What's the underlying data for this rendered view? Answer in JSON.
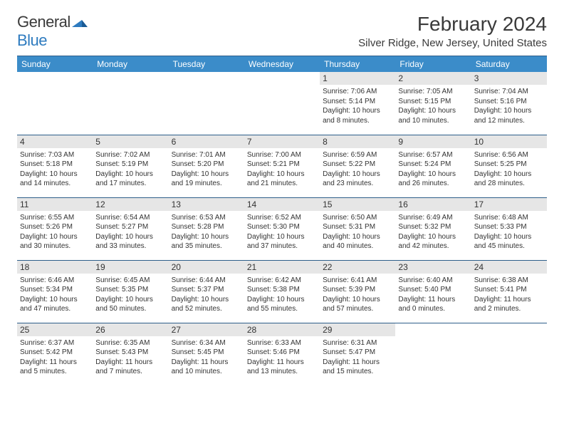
{
  "brand": {
    "word1": "General",
    "word2": "Blue"
  },
  "header": {
    "title": "February 2024",
    "location": "Silver Ridge, New Jersey, United States"
  },
  "colors": {
    "header_bg": "#3b8cc9",
    "header_text": "#ffffff",
    "daynum_bg": "#e6e6e6",
    "rule": "#2e5f8a",
    "brand_blue": "#2e7bbf",
    "text": "#333333"
  },
  "weekdays": [
    "Sunday",
    "Monday",
    "Tuesday",
    "Wednesday",
    "Thursday",
    "Friday",
    "Saturday"
  ],
  "weeks": [
    [
      null,
      null,
      null,
      null,
      {
        "n": "1",
        "sunrise": "7:06 AM",
        "sunset": "5:14 PM",
        "dl": "10 hours and 8 minutes."
      },
      {
        "n": "2",
        "sunrise": "7:05 AM",
        "sunset": "5:15 PM",
        "dl": "10 hours and 10 minutes."
      },
      {
        "n": "3",
        "sunrise": "7:04 AM",
        "sunset": "5:16 PM",
        "dl": "10 hours and 12 minutes."
      }
    ],
    [
      {
        "n": "4",
        "sunrise": "7:03 AM",
        "sunset": "5:18 PM",
        "dl": "10 hours and 14 minutes."
      },
      {
        "n": "5",
        "sunrise": "7:02 AM",
        "sunset": "5:19 PM",
        "dl": "10 hours and 17 minutes."
      },
      {
        "n": "6",
        "sunrise": "7:01 AM",
        "sunset": "5:20 PM",
        "dl": "10 hours and 19 minutes."
      },
      {
        "n": "7",
        "sunrise": "7:00 AM",
        "sunset": "5:21 PM",
        "dl": "10 hours and 21 minutes."
      },
      {
        "n": "8",
        "sunrise": "6:59 AM",
        "sunset": "5:22 PM",
        "dl": "10 hours and 23 minutes."
      },
      {
        "n": "9",
        "sunrise": "6:57 AM",
        "sunset": "5:24 PM",
        "dl": "10 hours and 26 minutes."
      },
      {
        "n": "10",
        "sunrise": "6:56 AM",
        "sunset": "5:25 PM",
        "dl": "10 hours and 28 minutes."
      }
    ],
    [
      {
        "n": "11",
        "sunrise": "6:55 AM",
        "sunset": "5:26 PM",
        "dl": "10 hours and 30 minutes."
      },
      {
        "n": "12",
        "sunrise": "6:54 AM",
        "sunset": "5:27 PM",
        "dl": "10 hours and 33 minutes."
      },
      {
        "n": "13",
        "sunrise": "6:53 AM",
        "sunset": "5:28 PM",
        "dl": "10 hours and 35 minutes."
      },
      {
        "n": "14",
        "sunrise": "6:52 AM",
        "sunset": "5:30 PM",
        "dl": "10 hours and 37 minutes."
      },
      {
        "n": "15",
        "sunrise": "6:50 AM",
        "sunset": "5:31 PM",
        "dl": "10 hours and 40 minutes."
      },
      {
        "n": "16",
        "sunrise": "6:49 AM",
        "sunset": "5:32 PM",
        "dl": "10 hours and 42 minutes."
      },
      {
        "n": "17",
        "sunrise": "6:48 AM",
        "sunset": "5:33 PM",
        "dl": "10 hours and 45 minutes."
      }
    ],
    [
      {
        "n": "18",
        "sunrise": "6:46 AM",
        "sunset": "5:34 PM",
        "dl": "10 hours and 47 minutes."
      },
      {
        "n": "19",
        "sunrise": "6:45 AM",
        "sunset": "5:35 PM",
        "dl": "10 hours and 50 minutes."
      },
      {
        "n": "20",
        "sunrise": "6:44 AM",
        "sunset": "5:37 PM",
        "dl": "10 hours and 52 minutes."
      },
      {
        "n": "21",
        "sunrise": "6:42 AM",
        "sunset": "5:38 PM",
        "dl": "10 hours and 55 minutes."
      },
      {
        "n": "22",
        "sunrise": "6:41 AM",
        "sunset": "5:39 PM",
        "dl": "10 hours and 57 minutes."
      },
      {
        "n": "23",
        "sunrise": "6:40 AM",
        "sunset": "5:40 PM",
        "dl": "11 hours and 0 minutes."
      },
      {
        "n": "24",
        "sunrise": "6:38 AM",
        "sunset": "5:41 PM",
        "dl": "11 hours and 2 minutes."
      }
    ],
    [
      {
        "n": "25",
        "sunrise": "6:37 AM",
        "sunset": "5:42 PM",
        "dl": "11 hours and 5 minutes."
      },
      {
        "n": "26",
        "sunrise": "6:35 AM",
        "sunset": "5:43 PM",
        "dl": "11 hours and 7 minutes."
      },
      {
        "n": "27",
        "sunrise": "6:34 AM",
        "sunset": "5:45 PM",
        "dl": "11 hours and 10 minutes."
      },
      {
        "n": "28",
        "sunrise": "6:33 AM",
        "sunset": "5:46 PM",
        "dl": "11 hours and 13 minutes."
      },
      {
        "n": "29",
        "sunrise": "6:31 AM",
        "sunset": "5:47 PM",
        "dl": "11 hours and 15 minutes."
      },
      null,
      null
    ]
  ],
  "labels": {
    "sunrise": "Sunrise: ",
    "sunset": "Sunset: ",
    "daylight": "Daylight: "
  }
}
